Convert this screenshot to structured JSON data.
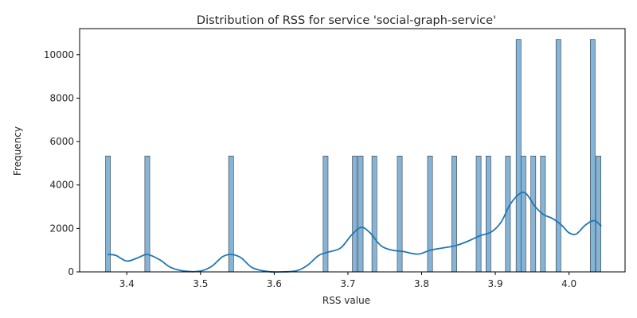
{
  "chart_data": {
    "type": "bar",
    "title": "Distribution of RSS for service 'social-graph-service'",
    "xlabel": "RSS value",
    "ylabel": "Frequency",
    "xlim": [
      3.336,
      4.076
    ],
    "ylim": [
      0,
      11200
    ],
    "xticks": [
      "3.4",
      "3.5",
      "3.6",
      "3.7",
      "3.8",
      "3.9",
      "4.0"
    ],
    "yticks": [
      "0",
      "2000",
      "4000",
      "6000",
      "8000",
      "10000"
    ],
    "bin_width": 0.00667,
    "bar_color": "#5b9bc9",
    "kde_color": "#1f77b4",
    "bins": [
      {
        "x": 3.3745,
        "count": 5336
      },
      {
        "x": 3.4278,
        "count": 5336
      },
      {
        "x": 3.5415,
        "count": 5336
      },
      {
        "x": 3.6697,
        "count": 5336
      },
      {
        "x": 3.7094,
        "count": 5336
      },
      {
        "x": 3.7173,
        "count": 5336
      },
      {
        "x": 3.7359,
        "count": 5336
      },
      {
        "x": 3.7703,
        "count": 5336
      },
      {
        "x": 3.8114,
        "count": 5336
      },
      {
        "x": 3.8443,
        "count": 5336
      },
      {
        "x": 3.8773,
        "count": 5336
      },
      {
        "x": 3.8906,
        "count": 5336
      },
      {
        "x": 3.9171,
        "count": 5336
      },
      {
        "x": 3.9315,
        "count": 10700
      },
      {
        "x": 3.9381,
        "count": 5336
      },
      {
        "x": 3.9515,
        "count": 5336
      },
      {
        "x": 3.9646,
        "count": 5336
      },
      {
        "x": 3.9856,
        "count": 10700
      },
      {
        "x": 4.0321,
        "count": 10700
      },
      {
        "x": 4.0399,
        "count": 5336
      }
    ],
    "kde": [
      [
        3.374,
        800
      ],
      [
        3.385,
        760
      ],
      [
        3.4,
        500
      ],
      [
        3.415,
        650
      ],
      [
        3.428,
        800
      ],
      [
        3.445,
        550
      ],
      [
        3.46,
        200
      ],
      [
        3.48,
        30
      ],
      [
        3.5,
        40
      ],
      [
        3.515,
        250
      ],
      [
        3.53,
        700
      ],
      [
        3.542,
        800
      ],
      [
        3.555,
        650
      ],
      [
        3.57,
        200
      ],
      [
        3.59,
        20
      ],
      [
        3.61,
        0
      ],
      [
        3.63,
        50
      ],
      [
        3.645,
        300
      ],
      [
        3.66,
        750
      ],
      [
        3.672,
        900
      ],
      [
        3.69,
        1100
      ],
      [
        3.705,
        1700
      ],
      [
        3.718,
        2050
      ],
      [
        3.73,
        1800
      ],
      [
        3.745,
        1200
      ],
      [
        3.76,
        1000
      ],
      [
        3.775,
        940
      ],
      [
        3.795,
        820
      ],
      [
        3.812,
        1000
      ],
      [
        3.828,
        1100
      ],
      [
        3.845,
        1200
      ],
      [
        3.862,
        1400
      ],
      [
        3.878,
        1650
      ],
      [
        3.895,
        1850
      ],
      [
        3.908,
        2300
      ],
      [
        3.92,
        3100
      ],
      [
        3.933,
        3600
      ],
      [
        3.942,
        3600
      ],
      [
        3.953,
        3050
      ],
      [
        3.965,
        2650
      ],
      [
        3.978,
        2450
      ],
      [
        3.99,
        2150
      ],
      [
        4.0,
        1800
      ],
      [
        4.01,
        1750
      ],
      [
        4.022,
        2150
      ],
      [
        4.034,
        2360
      ],
      [
        4.044,
        2100
      ]
    ]
  }
}
